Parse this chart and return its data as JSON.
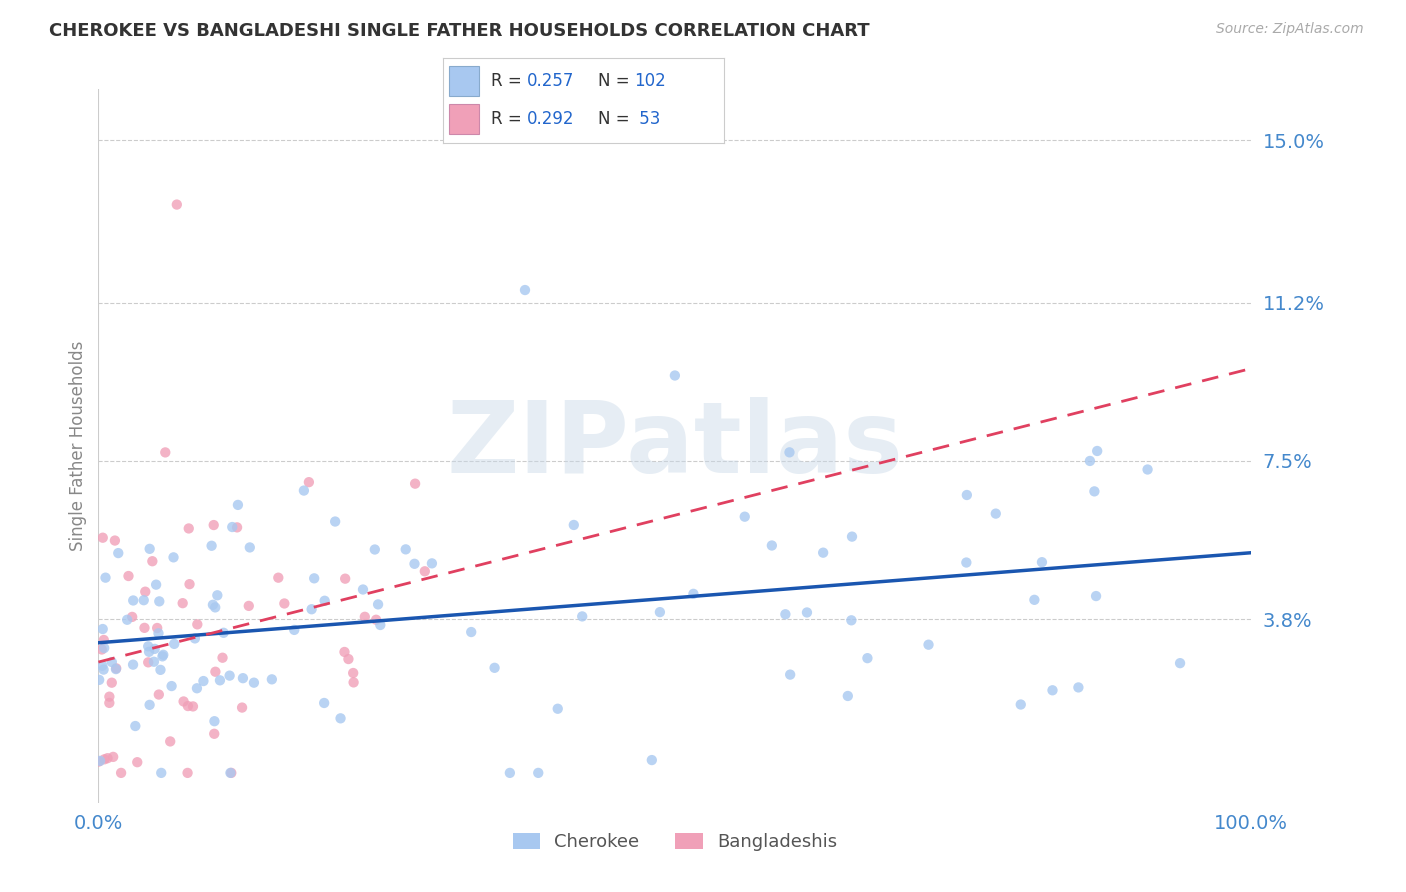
{
  "title": "CHEROKEE VS BANGLADESHI SINGLE FATHER HOUSEHOLDS CORRELATION CHART",
  "source": "Source: ZipAtlas.com",
  "ylabel": "Single Father Households",
  "cherokee_color": "#a8c8f0",
  "bangladeshi_color": "#f0a0b8",
  "cherokee_line_color": "#1a56b0",
  "bangladeshi_line_color": "#e04060",
  "cherokee_label": "Cherokee",
  "bangladeshi_label": "Bangladeshis",
  "watermark": "ZIPatlas",
  "cherokee_N": 102,
  "bangladeshi_N": 53,
  "background_color": "#ffffff",
  "grid_color": "#cccccc",
  "title_color": "#333333",
  "axis_label_color": "#4488cc",
  "legend_value_color": "#2266cc",
  "xmin": 0.0,
  "xmax": 1.0,
  "ymin": -0.005,
  "ymax": 0.162,
  "ytick_vals": [
    0.038,
    0.075,
    0.112,
    0.15
  ],
  "ytick_labels": [
    "3.8%",
    "7.5%",
    "11.2%",
    "15.0%"
  ]
}
